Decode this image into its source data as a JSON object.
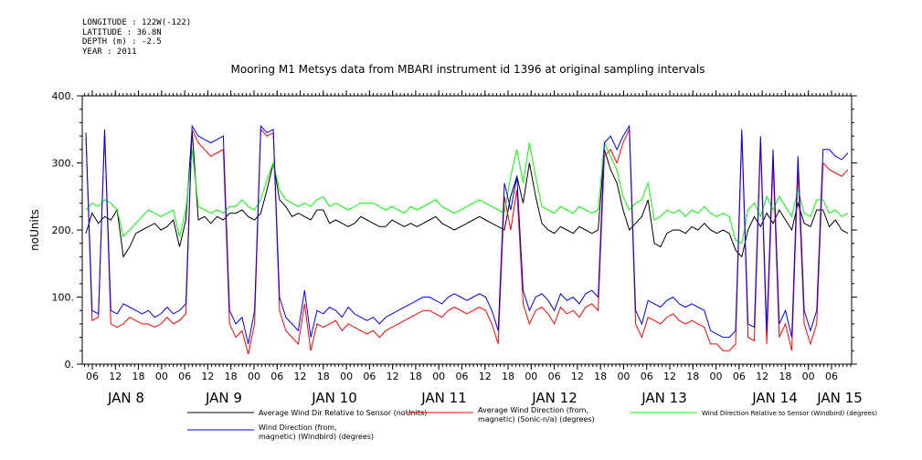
{
  "meta": {
    "longitude": "LONGITUDE : 122W(-122)",
    "latitude": "LATITUDE : 36.8N",
    "depth": "DEPTH (m) : -2.5",
    "year": "YEAR : 2011"
  },
  "chart_data": {
    "type": "line",
    "title": "Mooring M1 Metsys data from MBARI instrument id 1396 at original sampling intervals",
    "xlabel": "",
    "ylabel": "noUnits",
    "ylim": [
      0,
      400
    ],
    "yticks": [
      0,
      100,
      200,
      300,
      400
    ],
    "ytick_labels": [
      "0.",
      "100.",
      "200.",
      "300.",
      "400."
    ],
    "hour_tick_labels": [
      "06",
      "12",
      "18",
      "00",
      "06",
      "12",
      "18",
      "00",
      "06",
      "12",
      "18",
      "00",
      "06",
      "12",
      "18",
      "00",
      "06",
      "12",
      "18",
      "00",
      "06",
      "12",
      "18",
      "00",
      "06",
      "12",
      "18",
      "00",
      "06",
      "12",
      "18",
      "00",
      "06"
    ],
    "day_labels": [
      "JAN 8",
      "JAN 9",
      "JAN 10",
      "JAN 11",
      "JAN 12",
      "JAN 13",
      "JAN 14",
      "JAN 15"
    ],
    "grid": false,
    "series": [
      {
        "name": "Average Wind Dir Relative to Sensor (noUnits)",
        "color": "#000000",
        "values": [
          195,
          225,
          210,
          220,
          215,
          230,
          160,
          175,
          195,
          200,
          205,
          210,
          200,
          205,
          215,
          175,
          215,
          350,
          215,
          220,
          210,
          220,
          215,
          225,
          225,
          230,
          220,
          215,
          225,
          260,
          300,
          245,
          235,
          220,
          225,
          220,
          215,
          230,
          230,
          210,
          215,
          210,
          205,
          210,
          220,
          215,
          210,
          205,
          205,
          215,
          210,
          205,
          210,
          205,
          210,
          215,
          220,
          210,
          205,
          200,
          205,
          210,
          215,
          220,
          215,
          210,
          205,
          200,
          250,
          280,
          240,
          300,
          250,
          210,
          200,
          195,
          205,
          200,
          195,
          205,
          200,
          195,
          200,
          320,
          290,
          270,
          230,
          200,
          210,
          220,
          245,
          180,
          175,
          195,
          200,
          200,
          195,
          205,
          200,
          210,
          200,
          195,
          200,
          195,
          170,
          160,
          200,
          220,
          205,
          225,
          210,
          230,
          215,
          200,
          240,
          210,
          205,
          230,
          230,
          205,
          215,
          200,
          195
        ]
      },
      {
        "name": "Average Wind Direction (from, magnetic) (Sonic-n/a) (degrees)",
        "color": "#ff0000",
        "values": [
          340,
          65,
          70,
          345,
          60,
          55,
          60,
          70,
          65,
          60,
          60,
          55,
          60,
          70,
          60,
          65,
          75,
          350,
          330,
          320,
          310,
          315,
          320,
          60,
          40,
          50,
          15,
          60,
          350,
          340,
          345,
          80,
          50,
          40,
          30,
          90,
          20,
          60,
          55,
          60,
          65,
          50,
          60,
          55,
          50,
          45,
          50,
          40,
          50,
          55,
          60,
          65,
          70,
          75,
          80,
          80,
          75,
          70,
          80,
          85,
          80,
          75,
          80,
          85,
          80,
          60,
          30,
          250,
          200,
          260,
          90,
          60,
          80,
          85,
          75,
          60,
          85,
          75,
          80,
          70,
          85,
          90,
          80,
          310,
          320,
          300,
          330,
          350,
          60,
          40,
          70,
          65,
          60,
          70,
          75,
          65,
          60,
          65,
          60,
          55,
          30,
          30,
          20,
          20,
          30,
          345,
          40,
          35,
          330,
          30,
          300,
          40,
          60,
          20,
          290,
          60,
          30,
          60,
          300,
          290,
          285,
          280,
          290
        ]
      },
      {
        "name": "Wind Direction Relative to Sensor (Windbird) (degrees)",
        "color": "#00ff00",
        "values": [
          230,
          240,
          235,
          245,
          240,
          230,
          190,
          200,
          210,
          220,
          230,
          225,
          220,
          225,
          230,
          190,
          230,
          320,
          235,
          230,
          225,
          230,
          225,
          235,
          235,
          245,
          235,
          230,
          245,
          275,
          300,
          260,
          245,
          240,
          235,
          240,
          235,
          245,
          250,
          235,
          240,
          235,
          230,
          235,
          240,
          240,
          240,
          235,
          230,
          235,
          230,
          225,
          235,
          230,
          235,
          240,
          245,
          235,
          230,
          225,
          230,
          235,
          240,
          245,
          240,
          235,
          230,
          225,
          280,
          320,
          270,
          330,
          280,
          235,
          230,
          225,
          235,
          230,
          225,
          235,
          230,
          225,
          230,
          330,
          310,
          290,
          250,
          230,
          240,
          245,
          270,
          215,
          220,
          230,
          225,
          230,
          220,
          230,
          225,
          235,
          225,
          220,
          225,
          220,
          185,
          180,
          230,
          240,
          220,
          250,
          230,
          250,
          235,
          220,
          260,
          225,
          220,
          245,
          245,
          225,
          230,
          220,
          225
        ]
      },
      {
        "name": "Wind Direction (from, magnetic) (Windbird) (degrees)",
        "color": "#0000ff",
        "values": [
          345,
          80,
          75,
          350,
          80,
          75,
          90,
          85,
          80,
          75,
          80,
          70,
          75,
          85,
          75,
          80,
          90,
          355,
          340,
          335,
          330,
          335,
          340,
          80,
          60,
          70,
          30,
          80,
          355,
          345,
          350,
          100,
          70,
          60,
          50,
          110,
          40,
          80,
          75,
          85,
          80,
          70,
          85,
          75,
          70,
          65,
          70,
          60,
          70,
          75,
          80,
          85,
          90,
          95,
          100,
          100,
          95,
          90,
          100,
          105,
          100,
          95,
          100,
          105,
          100,
          80,
          50,
          270,
          230,
          280,
          110,
          80,
          100,
          105,
          95,
          80,
          105,
          95,
          100,
          90,
          105,
          110,
          100,
          330,
          340,
          320,
          340,
          355,
          80,
          60,
          95,
          90,
          85,
          95,
          100,
          90,
          85,
          90,
          85,
          80,
          50,
          45,
          40,
          40,
          50,
          350,
          60,
          55,
          340,
          50,
          320,
          60,
          80,
          40,
          310,
          80,
          50,
          80,
          320,
          320,
          310,
          305,
          315
        ]
      }
    ]
  }
}
